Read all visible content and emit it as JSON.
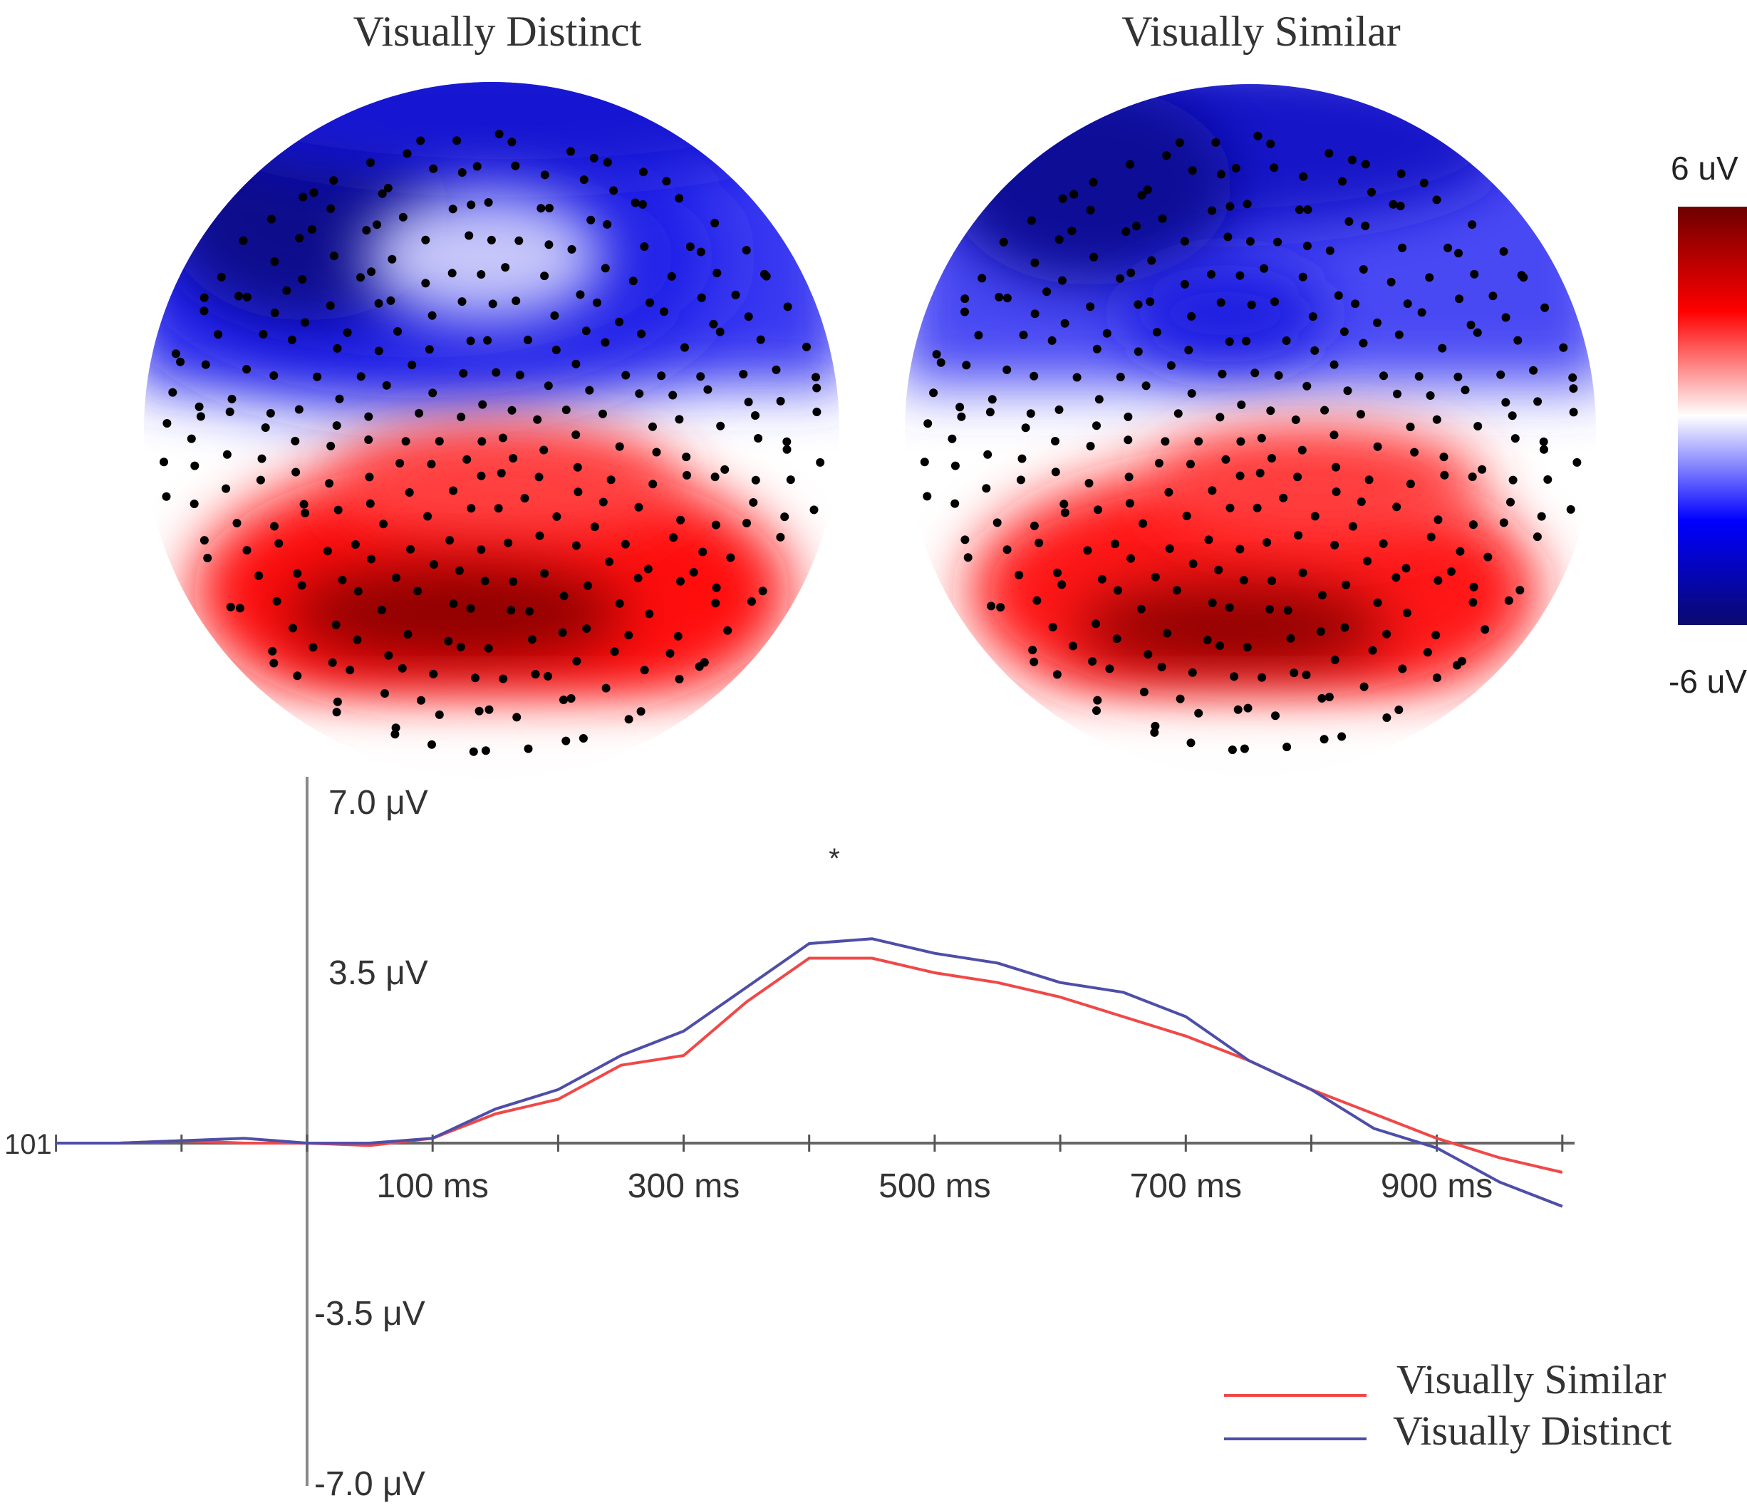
{
  "topomaps": {
    "left_title": "Visually Distinct",
    "right_title": "Visually Similar",
    "colorbar": {
      "max_label": "6 uV",
      "min_label": "-6 uV",
      "max": 6,
      "min": -6,
      "colors": [
        "#0a0a6e",
        "#0000ff",
        "#ffffff",
        "#ff0000",
        "#6e0000"
      ]
    }
  },
  "chart_data": {
    "type": "line",
    "title": "",
    "xlabel": "",
    "ylabel": "",
    "xlim": [
      -200,
      1000
    ],
    "ylim": [
      -7,
      7
    ],
    "x_tick_values": [
      100,
      300,
      500,
      700,
      900
    ],
    "x_tick_labels": [
      "100 ms",
      "300 ms",
      "500 ms",
      "700 ms",
      "900 ms"
    ],
    "y_tick_values": [
      7,
      3.5,
      -3.5,
      -7
    ],
    "y_tick_labels": [
      "7.0 μV",
      "3.5 μV",
      "-3.5 μV",
      "-7.0 μV"
    ],
    "origin_label": "101",
    "annotation": "*",
    "annotation_x": 420,
    "legend_position": "bottom-right",
    "series": [
      {
        "name": "Visually Similar",
        "color": "#f04848",
        "x": [
          -200,
          -150,
          -100,
          -50,
          0,
          50,
          100,
          150,
          200,
          250,
          300,
          350,
          400,
          450,
          500,
          550,
          600,
          650,
          700,
          750,
          800,
          850,
          900,
          950,
          1000
        ],
        "values": [
          0,
          0,
          0.05,
          0,
          0,
          -0.05,
          0.1,
          0.6,
          0.9,
          1.6,
          1.8,
          2.9,
          3.8,
          3.8,
          3.5,
          3.3,
          3.0,
          2.6,
          2.2,
          1.7,
          1.1,
          0.6,
          0.1,
          -0.3,
          -0.6
        ]
      },
      {
        "name": "Visually Distinct",
        "color": "#4e4ea8",
        "x": [
          -200,
          -150,
          -100,
          -50,
          0,
          50,
          100,
          150,
          200,
          250,
          300,
          350,
          400,
          450,
          500,
          550,
          600,
          650,
          700,
          750,
          800,
          850,
          900,
          950,
          1000
        ],
        "values": [
          0,
          0,
          0.05,
          0.1,
          0,
          0,
          0.1,
          0.7,
          1.1,
          1.8,
          2.3,
          3.2,
          4.1,
          4.2,
          3.9,
          3.7,
          3.3,
          3.1,
          2.6,
          1.7,
          1.1,
          0.3,
          -0.1,
          -0.8,
          -1.3
        ]
      }
    ]
  }
}
